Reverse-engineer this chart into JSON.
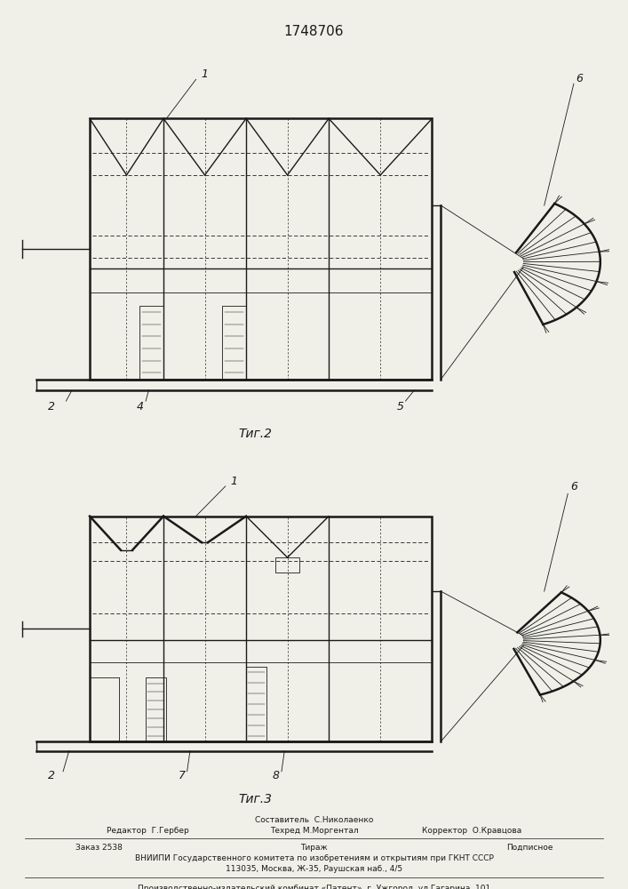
{
  "title": "1748706",
  "title_fontsize": 11,
  "bg_color": "#f0f0e8",
  "line_color": "#1a1a1a",
  "fig2_label": "Τиг.2",
  "fig3_label": "Τиг.3",
  "footer_line0": "Составитель  С.Николаенко",
  "footer_line1a": "Редактор  Г.Гербер",
  "footer_line1b": "Техред М.Моргентал",
  "footer_line1c": "Корректор  О.Кравцова",
  "footer_line2a": "Заказ 2538",
  "footer_line2b": "Тираж",
  "footer_line2c": "Подписное",
  "footer_line3": "ВНИИПИ Государственного комитета по изобретениям и открытиям при ГКНТ СССР",
  "footer_line4": "113035, Москва, Ж-35, Раушская наб., 4/5",
  "footer_line5": "Производственно-издательский комбинат «Патент», г. Ужгород, ул.Гагарина, 101"
}
